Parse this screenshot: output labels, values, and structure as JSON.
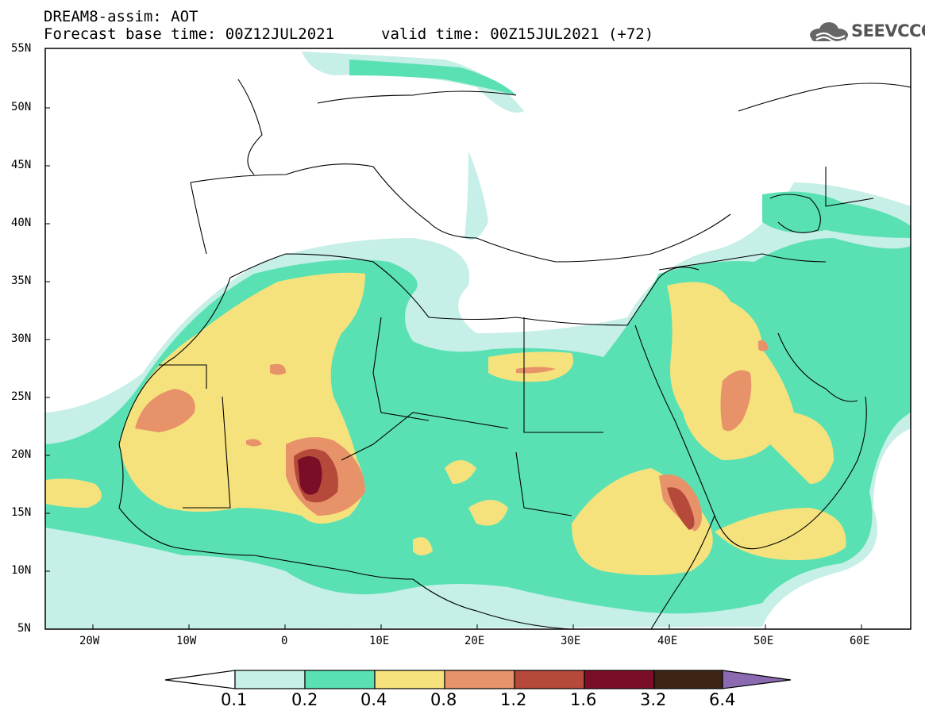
{
  "header": {
    "line1": "DREAM8-assim: AOT",
    "line2": "Forecast base time: 00Z12JUL2021",
    "valid": "valid time: 00Z15JUL2021 (+72)",
    "logo_text": "SEEVCCC",
    "logo_icon": "cloud-icon"
  },
  "axes": {
    "lat_labels": [
      "55N",
      "50N",
      "45N",
      "40N",
      "35N",
      "30N",
      "25N",
      "20N",
      "15N",
      "10N",
      "5N"
    ],
    "lon_labels": [
      "20W",
      "10W",
      "0",
      "10E",
      "20E",
      "30E",
      "40E",
      "50E",
      "60E"
    ]
  },
  "colorbar": {
    "labels": [
      "0.1",
      "0.2",
      "0.4",
      "0.8",
      "1.2",
      "1.6",
      "3.2",
      "6.4"
    ],
    "colors": [
      "#ffffff",
      "#c6efe7",
      "#5ae1b3",
      "#f6e27c",
      "#e8926a",
      "#b5493a",
      "#7a0e27",
      "#3e2415",
      "#8c6ab2"
    ]
  },
  "colors": {
    "teal_light": "#c6efe7",
    "teal": "#5ae1b3",
    "yellow": "#f6e27c",
    "orange": "#e8926a",
    "red_brown": "#b5493a",
    "maroon": "#7a0e27"
  }
}
